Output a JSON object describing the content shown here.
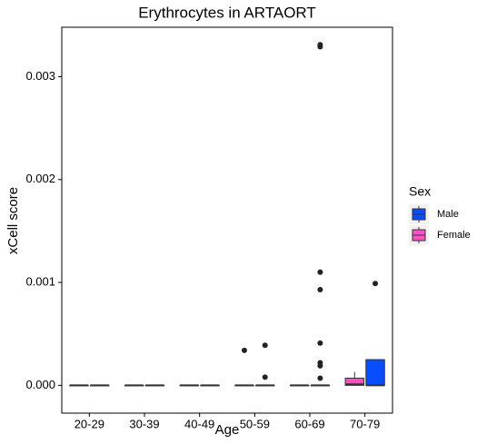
{
  "chart_data": {
    "type": "box",
    "title": "Erythrocytes in ARTAORT",
    "x_label": "Age",
    "y_label": "xCell score",
    "categories": [
      "20-29",
      "30-39",
      "40-49",
      "50-59",
      "60-69",
      "70-79"
    ],
    "ylim": [
      -0.00027,
      0.00348
    ],
    "yticks": [
      {
        "value": 0,
        "label": "0.000"
      },
      {
        "value": 0.001,
        "label": "0.001"
      },
      {
        "value": 0.002,
        "label": "0.002"
      },
      {
        "value": 0.003,
        "label": "0.003"
      }
    ],
    "legend_title": "Sex",
    "legend_position": "right",
    "series": [
      {
        "name": "Male",
        "color": "#0a4cff",
        "min": [
          0,
          0,
          0,
          0,
          0,
          0
        ],
        "q1": [
          0,
          0,
          0,
          0,
          0,
          0
        ],
        "median": [
          0,
          0,
          0,
          0,
          0,
          0
        ],
        "q3": [
          0,
          0,
          0,
          0,
          0,
          0.00025
        ],
        "max": [
          0,
          0,
          0,
          0,
          0,
          0.00025
        ],
        "outliers": [
          [],
          [],
          [],
          [
            0.00039,
            8e-05
          ],
          [
            0.00331,
            0.00329,
            0.0011,
            0.00093,
            0.00041,
            0.00022,
            0.00019,
            7e-05
          ],
          [
            0.00099
          ]
        ]
      },
      {
        "name": "Female",
        "color": "#ff4fc8",
        "min": [
          0,
          0,
          0,
          0,
          0,
          0
        ],
        "q1": [
          0,
          0,
          0,
          0,
          0,
          0
        ],
        "median": [
          0,
          0,
          0,
          0,
          0,
          1e-05
        ],
        "q3": [
          0,
          0,
          0,
          0,
          0,
          7e-05
        ],
        "max": [
          0,
          0,
          0,
          0,
          0,
          0.00013
        ],
        "outliers": [
          [],
          [],
          [],
          [
            0.00034
          ],
          [],
          []
        ]
      }
    ]
  }
}
